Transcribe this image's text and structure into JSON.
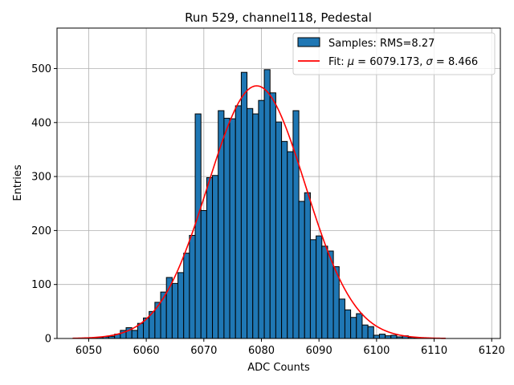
{
  "chart_data": {
    "type": "bar",
    "title": "Run 529, channel118, Pedestal",
    "xlabel": "ADC Counts",
    "ylabel": "Entries",
    "xlim": [
      6044.5,
      6121.5
    ],
    "ylim": [
      0,
      575
    ],
    "xticks": [
      6050,
      6060,
      6070,
      6080,
      6090,
      6100,
      6110,
      6120
    ],
    "yticks": [
      0,
      100,
      200,
      300,
      400,
      500
    ],
    "grid": true,
    "legend_position": "top-right",
    "colors": {
      "bars": "#1f77b4",
      "bar_edge": "#000000",
      "fit": "#ff0000",
      "grid": "#b0b0b0"
    },
    "histogram": {
      "name": "Samples: RMS=8.27",
      "bin_width": 1,
      "bin_centers": [
        6050,
        6051,
        6052,
        6053,
        6054,
        6055,
        6056,
        6057,
        6058,
        6059,
        6060,
        6061,
        6062,
        6063,
        6064,
        6065,
        6066,
        6067,
        6068,
        6069,
        6070,
        6071,
        6072,
        6073,
        6074,
        6075,
        6076,
        6077,
        6078,
        6079,
        6080,
        6081,
        6082,
        6083,
        6084,
        6085,
        6086,
        6087,
        6088,
        6089,
        6090,
        6091,
        6092,
        6093,
        6094,
        6095,
        6096,
        6097,
        6098,
        6099,
        6100,
        6101,
        6102,
        6103,
        6104,
        6105,
        6106,
        6107
      ],
      "counts": [
        1,
        1,
        2,
        3,
        4,
        8,
        15,
        20,
        15,
        28,
        38,
        50,
        67,
        86,
        113,
        102,
        122,
        158,
        191,
        416,
        237,
        298,
        302,
        422,
        408,
        407,
        431,
        493,
        426,
        416,
        441,
        498,
        455,
        401,
        365,
        346,
        422,
        254,
        270,
        183,
        190,
        171,
        162,
        133,
        73,
        53,
        39,
        46,
        25,
        22,
        6,
        8,
        5,
        6,
        3,
        5,
        2,
        1
      ]
    },
    "fit": {
      "label_prefix": "Fit: ",
      "mu_symbol": "μ",
      "mu_value": "6079.173",
      "sigma_symbol": "σ",
      "sigma_value": "8.466",
      "mu": 6079.173,
      "sigma": 8.466,
      "amplitude": 468,
      "x_range": [
        6047.2,
        6112
      ]
    }
  }
}
